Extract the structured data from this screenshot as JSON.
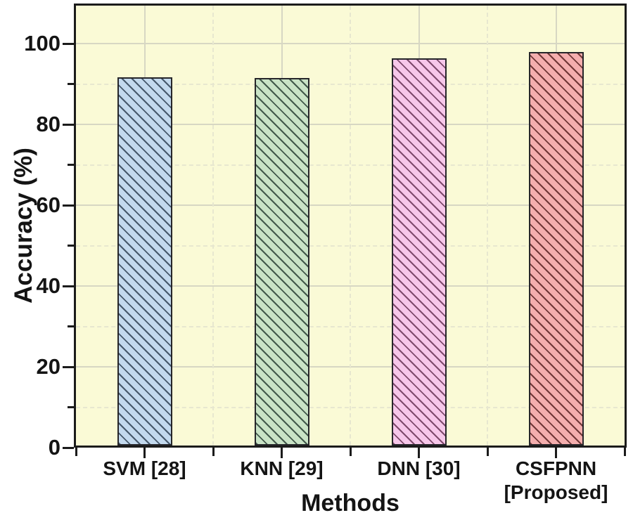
{
  "figure": {
    "background": "#ffffff",
    "plot_background": "#fafad6",
    "axis_color": "#1b1b1b",
    "grid_major_color": "#d7d7c3",
    "grid_minor_color": "#e7e7cf",
    "text_color": "#141414"
  },
  "chart_data": {
    "type": "bar",
    "title": "",
    "xlabel": "Methods",
    "ylabel": "Accuracy (%)",
    "categories": [
      "SVM [28]",
      "KNN [29]",
      "DNN [30]",
      "CSFPNN [Proposed]"
    ],
    "category_label_lines": [
      [
        "SVM [28]"
      ],
      [
        "KNN [29]"
      ],
      [
        "DNN [30]"
      ],
      [
        "CSFPNN",
        "[Proposed]"
      ]
    ],
    "values": [
      91.8,
      91.5,
      96.5,
      98.0
    ],
    "ylim": [
      0,
      110
    ],
    "yticks_major": [
      0,
      20,
      40,
      60,
      80,
      100
    ],
    "yticks_minor": [
      10,
      30,
      50,
      70,
      90
    ],
    "grid": "major-solid, minor-dashed, horizontal and vertical",
    "legend_position": "none",
    "hatch_pattern": "diagonal-down",
    "bar_styles": [
      {
        "name": "SVM [28]",
        "fill": "#c3d9ee",
        "hatch": "#46586b"
      },
      {
        "name": "KNN [29]",
        "fill": "#c9e3c6",
        "hatch": "#41584a"
      },
      {
        "name": "DNN [30]",
        "fill": "#f7c7ea",
        "hatch": "#7e4a6c"
      },
      {
        "name": "CSFPNN [Proposed]",
        "fill": "#f4aeae",
        "hatch": "#713737"
      }
    ]
  }
}
